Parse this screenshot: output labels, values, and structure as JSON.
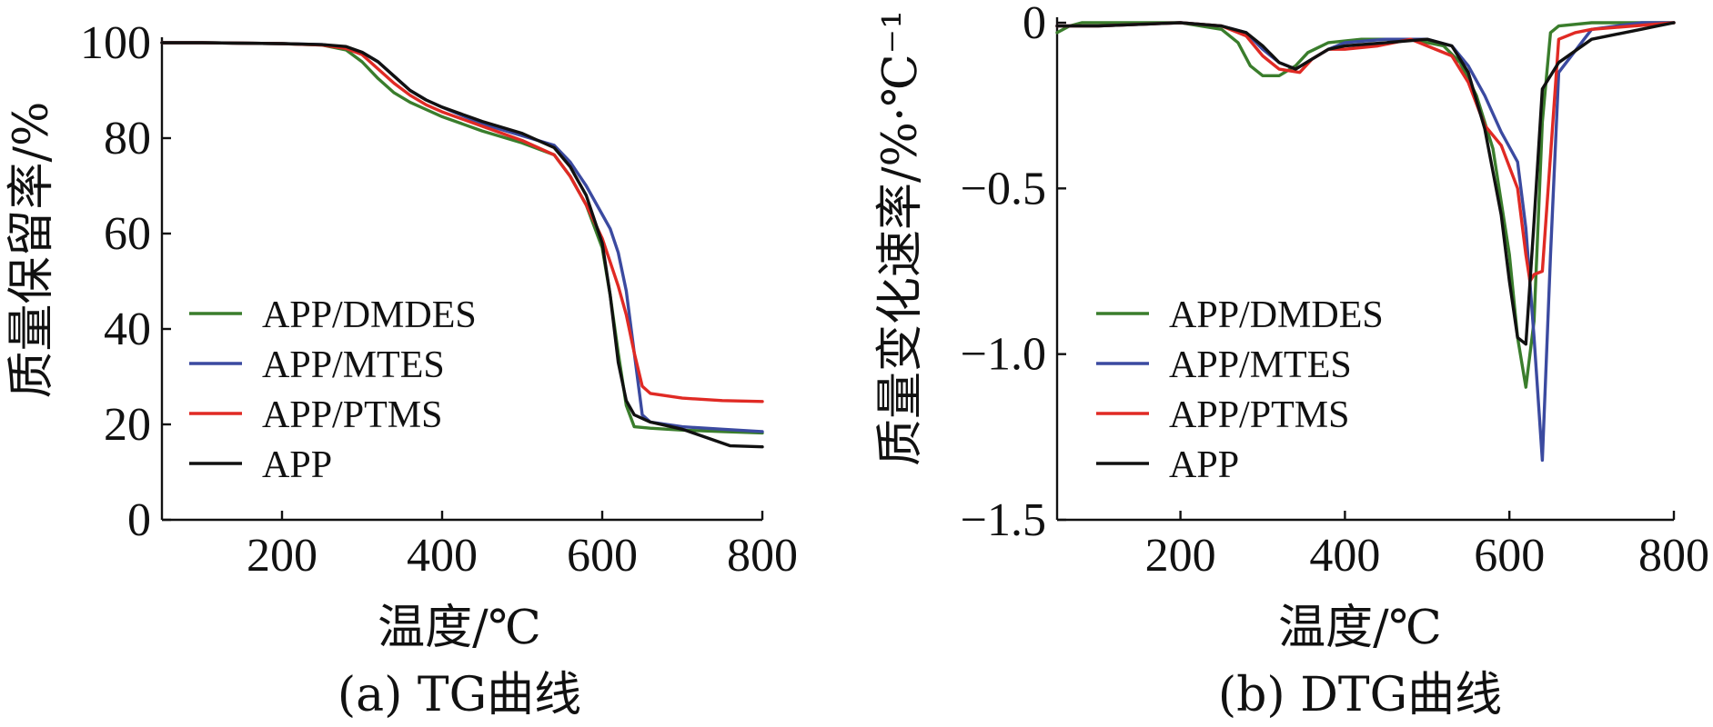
{
  "figure": {
    "colors": {
      "APP/DMDES": "#3a7d2c",
      "APP/MTES": "#3b4aa0",
      "APP/PTMS": "#e02a24",
      "APP": "#111111"
    }
  },
  "chart_data": [
    {
      "type": "line",
      "caption": "(a) TG曲线",
      "xlabel": "温度/℃",
      "ylabel": "质量保留率/%",
      "xlim": [
        50,
        800
      ],
      "ylim": [
        0,
        100
      ],
      "xticks": [
        200,
        400,
        600,
        800
      ],
      "yticks": [
        0,
        20,
        40,
        60,
        80,
        100
      ],
      "grid": false,
      "legend_position": "center-left",
      "series": [
        {
          "name": "APP/DMDES",
          "color": "#3a7d2c",
          "x": [
            50,
            100,
            200,
            250,
            280,
            300,
            320,
            340,
            360,
            380,
            400,
            450,
            500,
            540,
            560,
            580,
            600,
            610,
            620,
            630,
            640,
            660,
            700,
            750,
            800
          ],
          "y": [
            100,
            100,
            99.8,
            99.5,
            98.5,
            96,
            92.5,
            89.5,
            87.5,
            86,
            84.5,
            81.5,
            79,
            76.5,
            72,
            66,
            57,
            47,
            35,
            24,
            19.5,
            19.2,
            18.8,
            18.5,
            18.2
          ]
        },
        {
          "name": "APP/MTES",
          "color": "#3b4aa0",
          "x": [
            50,
            100,
            200,
            250,
            280,
            300,
            320,
            340,
            360,
            380,
            400,
            450,
            500,
            540,
            560,
            580,
            600,
            610,
            620,
            630,
            640,
            650,
            660,
            700,
            750,
            800
          ],
          "y": [
            100,
            100,
            99.8,
            99.6,
            99,
            98,
            96,
            93,
            90,
            88,
            86.5,
            83,
            80.5,
            78.5,
            75,
            70,
            64,
            61,
            56,
            48,
            35,
            22,
            20.5,
            19.5,
            19,
            18.5
          ]
        },
        {
          "name": "APP/PTMS",
          "color": "#e02a24",
          "x": [
            50,
            100,
            200,
            250,
            280,
            300,
            320,
            340,
            360,
            380,
            400,
            450,
            500,
            540,
            560,
            580,
            600,
            610,
            620,
            630,
            640,
            650,
            660,
            700,
            750,
            800
          ],
          "y": [
            100,
            100,
            99.8,
            99.5,
            98.8,
            97.5,
            94.5,
            91.5,
            89,
            87,
            85.5,
            82.5,
            79.5,
            76.5,
            72,
            66,
            59,
            54,
            49,
            43,
            35,
            28,
            26.5,
            25.5,
            25,
            24.8
          ]
        },
        {
          "name": "APP",
          "color": "#111111",
          "x": [
            50,
            100,
            200,
            250,
            280,
            300,
            320,
            340,
            360,
            380,
            400,
            450,
            500,
            540,
            560,
            580,
            600,
            610,
            620,
            630,
            640,
            660,
            700,
            760,
            800
          ],
          "y": [
            100,
            100,
            99.8,
            99.6,
            99.2,
            98,
            96,
            93,
            90,
            88,
            86.5,
            83.5,
            81,
            78,
            74,
            68,
            58,
            47,
            33,
            25,
            22,
            20.5,
            19,
            15.5,
            15.3
          ]
        }
      ]
    },
    {
      "type": "line",
      "caption": "(b) DTG曲线",
      "xlabel": "温度/℃",
      "ylabel": "质量变化速率/%·℃⁻¹",
      "xlim": [
        50,
        800
      ],
      "ylim": [
        -1.5,
        0
      ],
      "xticks": [
        200,
        400,
        600,
        800
      ],
      "yticks": [
        0,
        -0.5,
        -1.0,
        -1.5
      ],
      "ytick_labels": [
        "0",
        "−0.5",
        "−1.0",
        "−1.5"
      ],
      "grid": false,
      "legend_position": "center-left",
      "series": [
        {
          "name": "APP/DMDES",
          "color": "#3a7d2c",
          "x": [
            50,
            65,
            80,
            100,
            200,
            250,
            270,
            285,
            300,
            320,
            340,
            355,
            380,
            420,
            480,
            520,
            540,
            560,
            580,
            600,
            610,
            620,
            630,
            640,
            650,
            660,
            700,
            760,
            800
          ],
          "y": [
            -0.03,
            -0.01,
            0,
            0,
            0,
            -0.02,
            -0.06,
            -0.13,
            -0.16,
            -0.16,
            -0.13,
            -0.09,
            -0.06,
            -0.05,
            -0.05,
            -0.07,
            -0.12,
            -0.22,
            -0.38,
            -0.7,
            -0.95,
            -1.1,
            -0.9,
            -0.3,
            -0.03,
            -0.01,
            0,
            0,
            0
          ]
        },
        {
          "name": "APP/MTES",
          "color": "#3b4aa0",
          "x": [
            50,
            100,
            200,
            250,
            280,
            300,
            320,
            340,
            360,
            380,
            400,
            450,
            500,
            530,
            550,
            570,
            590,
            610,
            620,
            630,
            640,
            650,
            660,
            700,
            760,
            800
          ],
          "y": [
            -0.01,
            -0.01,
            0,
            -0.01,
            -0.03,
            -0.08,
            -0.12,
            -0.14,
            -0.11,
            -0.08,
            -0.06,
            -0.05,
            -0.05,
            -0.07,
            -0.13,
            -0.22,
            -0.33,
            -0.42,
            -0.62,
            -0.95,
            -1.32,
            -0.7,
            -0.15,
            -0.02,
            0,
            0
          ]
        },
        {
          "name": "APP/PTMS",
          "color": "#e02a24",
          "x": [
            50,
            100,
            200,
            250,
            280,
            300,
            320,
            345,
            360,
            380,
            400,
            440,
            480,
            500,
            530,
            550,
            570,
            590,
            610,
            620,
            625,
            630,
            640,
            650,
            660,
            680,
            700,
            800
          ],
          "y": [
            -0.01,
            -0.01,
            0,
            -0.01,
            -0.04,
            -0.1,
            -0.14,
            -0.15,
            -0.11,
            -0.08,
            -0.08,
            -0.07,
            -0.05,
            -0.07,
            -0.1,
            -0.18,
            -0.31,
            -0.37,
            -0.5,
            -0.7,
            -0.78,
            -0.76,
            -0.75,
            -0.4,
            -0.05,
            -0.03,
            -0.02,
            0
          ]
        },
        {
          "name": "APP",
          "color": "#111111",
          "x": [
            50,
            100,
            200,
            250,
            280,
            300,
            320,
            340,
            360,
            380,
            400,
            450,
            500,
            530,
            550,
            570,
            590,
            600,
            610,
            620,
            630,
            640,
            660,
            700,
            760,
            780,
            800
          ],
          "y": [
            -0.01,
            -0.01,
            0,
            -0.01,
            -0.03,
            -0.07,
            -0.12,
            -0.14,
            -0.11,
            -0.08,
            -0.07,
            -0.06,
            -0.05,
            -0.07,
            -0.15,
            -0.32,
            -0.58,
            -0.78,
            -0.95,
            -0.97,
            -0.6,
            -0.2,
            -0.12,
            -0.05,
            -0.02,
            -0.01,
            0
          ]
        }
      ]
    }
  ]
}
